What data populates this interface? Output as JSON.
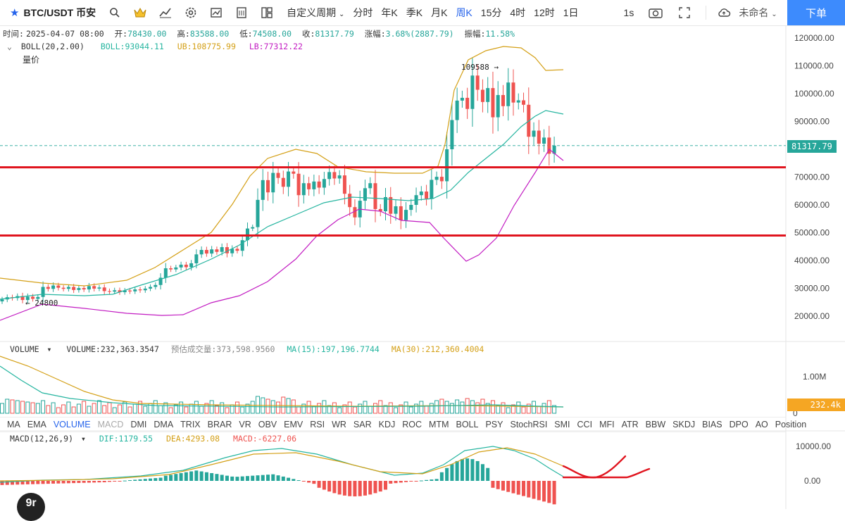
{
  "toolbar": {
    "symbol": "BTC/USDT 币安",
    "custom_period": "自定义周期",
    "periods": [
      "分时",
      "年K",
      "季K",
      "月K",
      "周K",
      "15分",
      "4时",
      "12时",
      "1日"
    ],
    "active_period": "周K",
    "interval": "1s",
    "layout_name": "未命名",
    "order_button": "下单"
  },
  "ohlc": {
    "time_label": "时间:",
    "time": "2025-04-07 08:00",
    "open_label": "开:",
    "open": "78430.00",
    "high_label": "高:",
    "high": "83588.00",
    "low_label": "低:",
    "low": "74508.00",
    "close_label": "收:",
    "close": "81317.79",
    "change_label": "涨幅:",
    "change": "3.68%(2887.79)",
    "amplitude_label": "振幅:",
    "amplitude": "11.58%"
  },
  "boll": {
    "name": "BOLL(20,2.00)",
    "mid": "BOLL:93044.11",
    "ub": "UB:108775.99",
    "lb": "LB:77312.22",
    "sub_label": "量价"
  },
  "volume": {
    "name": "VOLUME",
    "value": "VOLUME:232,363.3547",
    "est_label": "预估成交量:373,598.9560",
    "ma15": "MA(15):197,196.7744",
    "ma30": "MA(30):212,360.4004",
    "axis": "1.00M",
    "axis_zero": "0",
    "last_tag": "232.4k"
  },
  "indicator_tabs": [
    "MA",
    "EMA",
    "VOLUME",
    "MACD",
    "DMI",
    "DMA",
    "TRIX",
    "BRAR",
    "VR",
    "OBV",
    "EMV",
    "RSI",
    "WR",
    "SAR",
    "KDJ",
    "ROC",
    "MTM",
    "BOLL",
    "PSY",
    "StochRSI",
    "SMI",
    "CCI",
    "MFI",
    "ATR",
    "BBW",
    "SKDJ",
    "BIAS",
    "DPO",
    "AO",
    "Position"
  ],
  "macd": {
    "name": "MACD(12,26,9)",
    "dif": "DIF:1179.55",
    "dea": "DEA:4293.08",
    "macd": "MACD:-6227.06",
    "axis": [
      "10000.00",
      "0.00"
    ]
  },
  "price_axis": {
    "labels": [
      "120000.00",
      "110000.00",
      "100000.00",
      "90000.00",
      "80000.00",
      "70000.00",
      "60000.00",
      "50000.00",
      "40000.00",
      "30000.00",
      "20000.00"
    ],
    "last_price_tag": "81317.79",
    "high_marker": "109588",
    "low_marker": "24800"
  },
  "colors": {
    "up": "#26a69a",
    "down": "#ef5350",
    "accent": "#2563eb",
    "boll_mid": "#26b5a0",
    "boll_ub": "#d4a017",
    "boll_lb": "#c21cc2",
    "hline": "#e0141e",
    "annotation": "#e0141e"
  },
  "chart_data": {
    "type": "candlestick",
    "title": "BTC/USDT 币安 周K",
    "ylim": [
      15000,
      125000
    ],
    "horizontal_levels": [
      73500,
      49000
    ],
    "high_marker_value": 109588,
    "low_marker_value": 24800,
    "last_price": 81317.79
  }
}
